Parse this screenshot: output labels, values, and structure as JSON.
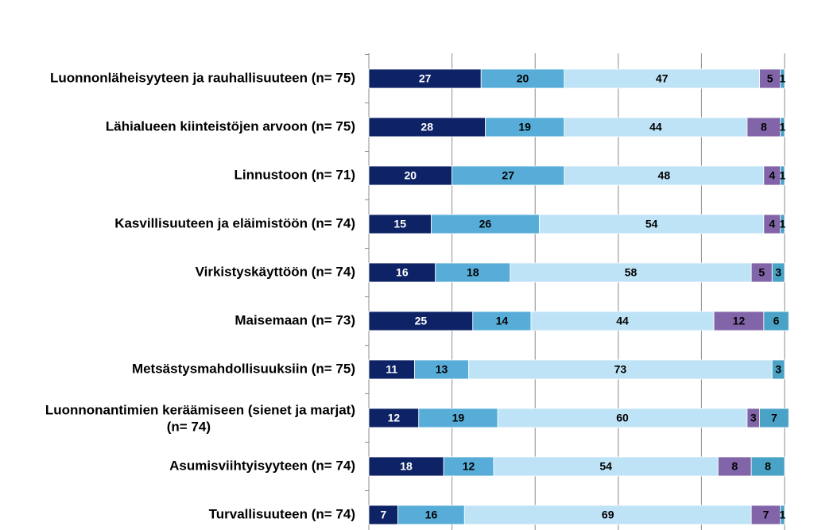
{
  "chart_data": {
    "type": "bar",
    "orientation": "horizontal",
    "stacked": true,
    "normalized": true,
    "xlim": [
      0,
      100
    ],
    "grid": true,
    "title": "",
    "categories": [
      [
        "Luonnonläheisyyteen ja rauhallisuuteen (n= 75)"
      ],
      [
        "Lähialueen kiinteistöjen arvoon (n= 75)"
      ],
      [
        "Linnustoon (n= 71)"
      ],
      [
        "Kasvillisuuteen ja eläimistöön (n= 74)"
      ],
      [
        "Virkistyskäyttöön (n= 74)"
      ],
      [
        "Maisemaan (n= 73)"
      ],
      [
        "Metsästysmahdollisuuksiin (n= 75)"
      ],
      [
        "Luonnonantimien keräämiseen (sienet ja marjat)",
        "(n= 74)"
      ],
      [
        "Asumisviihtyisyyteen (n= 74)"
      ],
      [
        "Turvallisuuteen (n= 74)"
      ]
    ],
    "series": [
      {
        "color": "#0d2366",
        "text_color": "#ffffff",
        "values": [
          27,
          28,
          20,
          15,
          16,
          25,
          11,
          12,
          18,
          7
        ]
      },
      {
        "color": "#57add8",
        "text_color": "#000000",
        "values": [
          20,
          19,
          27,
          26,
          18,
          14,
          13,
          19,
          12,
          16
        ]
      },
      {
        "color": "#bfe3f6",
        "text_color": "#000000",
        "values": [
          47,
          44,
          48,
          54,
          58,
          44,
          73,
          60,
          54,
          69
        ]
      },
      {
        "color": "#8265a8",
        "text_color": "#000000",
        "values": [
          5,
          8,
          4,
          4,
          5,
          12,
          0,
          3,
          8,
          7
        ]
      },
      {
        "color": "#4aa3c6",
        "text_color": "#000000",
        "values": [
          1,
          1,
          1,
          1,
          3,
          6,
          3,
          7,
          8,
          1
        ]
      }
    ]
  }
}
